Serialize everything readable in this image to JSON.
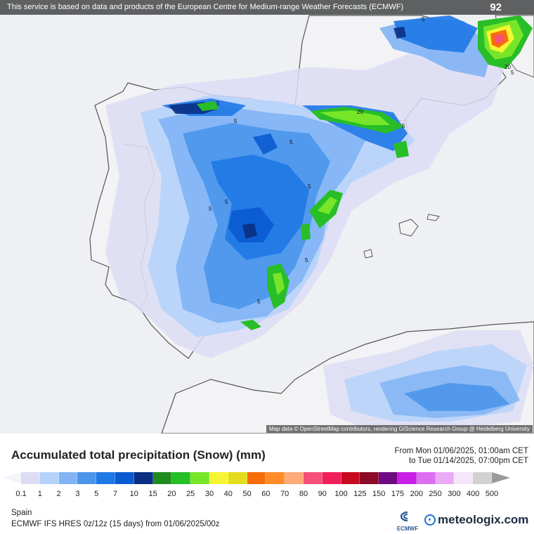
{
  "header": {
    "banner_text": "This service is based on data and products of the European Centre for Medium-range Weather Forecasts (ECMWF)",
    "max_value": "92"
  },
  "map": {
    "attribution": "Map data © OpenStreetMap contributors, rendering GIScience Research Group @ Heidelberg University",
    "contour_labels": [
      "5",
      "5",
      "5",
      "5",
      "5",
      "5",
      "5",
      "5",
      "5",
      "5",
      "20",
      "5",
      "20"
    ]
  },
  "legend": {
    "title": "Accumulated total precipitation (Snow) (mm)",
    "from": "From Mon 01/06/2025, 01:00am CET",
    "to": "to Tue 01/14/2025, 07:00pm CET",
    "labels": [
      "0.1",
      "1",
      "2",
      "3",
      "5",
      "7",
      "10",
      "15",
      "20",
      "25",
      "30",
      "40",
      "50",
      "60",
      "70",
      "80",
      "90",
      "100",
      "125",
      "150",
      "175",
      "200",
      "250",
      "300",
      "400",
      "500"
    ],
    "colors": [
      "#dcdcf5",
      "#b4d2fa",
      "#82b4f5",
      "#4b96eb",
      "#1e78e6",
      "#0a5ad2",
      "#0a2f82",
      "#1e8c1e",
      "#28be28",
      "#78e628",
      "#f5f532",
      "#e6dc1e",
      "#f56e0a",
      "#ff8c28",
      "#ffaa78",
      "#f55078",
      "#f01e5a",
      "#c80a1e",
      "#8c0a28",
      "#6e0a82",
      "#c81ee6",
      "#dc6ef0",
      "#ebaaf5",
      "#f5e6fa",
      "#d2d2d2"
    ],
    "arrow_low_color": "#f4f4fa",
    "arrow_high_color": "#9a9a9a"
  },
  "footer": {
    "region": "Spain",
    "model": "ECMWF IFS HRES 0z/12z (15 days) from  01/06/2025/00z",
    "ecmwf_logo": "ECMWF",
    "brand": "meteologix.com"
  }
}
